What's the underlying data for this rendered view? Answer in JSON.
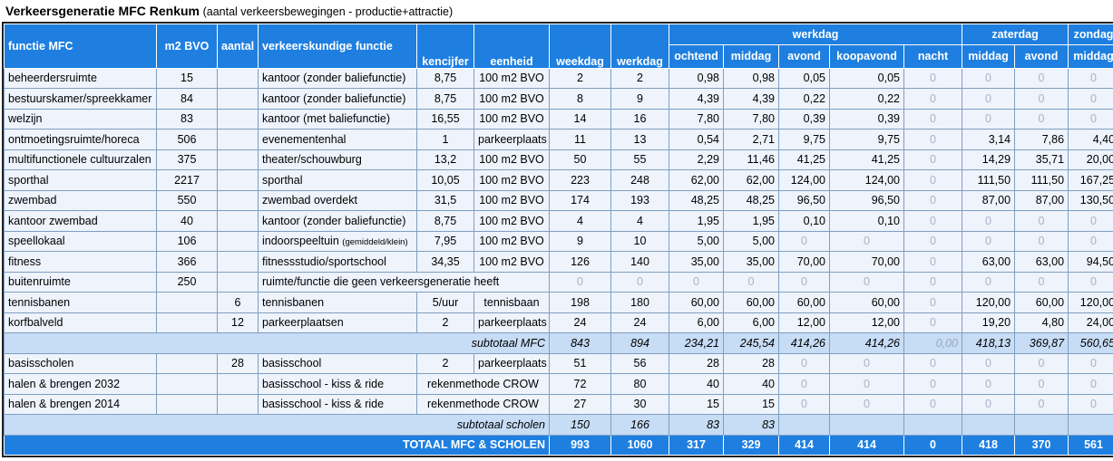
{
  "title": {
    "main": "Verkeersgeneratie MFC Renkum",
    "sub": "(aantal verkeersbewegingen - productie+attractie)"
  },
  "header": {
    "functie": "functie MFC",
    "m2": "m2 BVO",
    "aantal": "aantal",
    "vfunctie": "verkeerskundige functie",
    "kencijfer": "kencijfer",
    "eenheid": "eenheid",
    "weekdag": "weekdag",
    "werkdag": "werkdag",
    "group_werkdag": "werkdag",
    "group_zaterdag": "zaterdag",
    "group_zondag": "zondag",
    "ochtend": "ochtend",
    "middag": "middag",
    "avond": "avond",
    "koopavond": "koopavond",
    "nacht": "nacht",
    "za_middag": "middag",
    "za_avond": "avond",
    "zo_middag": "middag"
  },
  "rows": [
    {
      "f": "beheerdersruimte",
      "m2": "15",
      "aantal": "",
      "vf": "kantoor (zonder baliefunctie)",
      "vf_small": "",
      "kc": "8,75",
      "eh": "100 m2 BVO",
      "wk": "2",
      "wd": "2",
      "o": "0,98",
      "m": "0,98",
      "a": "0,05",
      "k": "0,05",
      "n": "0",
      "zm": "0",
      "za": "0",
      "zo": "0"
    },
    {
      "f": "bestuurskamer/spreekkamer",
      "m2": "84",
      "aantal": "",
      "vf": "kantoor (zonder baliefunctie)",
      "vf_small": "",
      "kc": "8,75",
      "eh": "100 m2 BVO",
      "wk": "8",
      "wd": "9",
      "o": "4,39",
      "m": "4,39",
      "a": "0,22",
      "k": "0,22",
      "n": "0",
      "zm": "0",
      "za": "0",
      "zo": "0"
    },
    {
      "f": "welzijn",
      "m2": "83",
      "aantal": "",
      "vf": "kantoor (met baliefunctie)",
      "vf_small": "",
      "kc": "16,55",
      "eh": "100 m2 BVO",
      "wk": "14",
      "wd": "16",
      "o": "7,80",
      "m": "7,80",
      "a": "0,39",
      "k": "0,39",
      "n": "0",
      "zm": "0",
      "za": "0",
      "zo": "0"
    },
    {
      "f": "ontmoetingsruimte/horeca",
      "m2": "506",
      "aantal": "",
      "vf": "evenementenhal",
      "vf_small": "",
      "kc": "1",
      "eh": "parkeerplaats",
      "wk": "11",
      "wd": "13",
      "o": "0,54",
      "m": "2,71",
      "a": "9,75",
      "k": "9,75",
      "n": "0",
      "zm": "3,14",
      "za": "7,86",
      "zo": "4,40"
    },
    {
      "f": "multifunctionele cultuurzalen",
      "m2": "375",
      "aantal": "",
      "vf": "theater/schouwburg",
      "vf_small": "",
      "kc": "13,2",
      "eh": "100 m2 BVO",
      "wk": "50",
      "wd": "55",
      "o": "2,29",
      "m": "11,46",
      "a": "41,25",
      "k": "41,25",
      "n": "0",
      "zm": "14,29",
      "za": "35,71",
      "zo": "20,00"
    },
    {
      "f": "sporthal",
      "m2": "2217",
      "aantal": "",
      "vf": "sporthal",
      "vf_small": "",
      "kc": "10,05",
      "eh": "100 m2 BVO",
      "wk": "223",
      "wd": "248",
      "o": "62,00",
      "m": "62,00",
      "a": "124,00",
      "k": "124,00",
      "n": "0",
      "zm": "111,50",
      "za": "111,50",
      "zo": "167,25"
    },
    {
      "f": "zwembad",
      "m2": "550",
      "aantal": "",
      "vf": "zwembad overdekt",
      "vf_small": "",
      "kc": "31,5",
      "eh": "100 m2 BVO",
      "wk": "174",
      "wd": "193",
      "o": "48,25",
      "m": "48,25",
      "a": "96,50",
      "k": "96,50",
      "n": "0",
      "zm": "87,00",
      "za": "87,00",
      "zo": "130,50"
    },
    {
      "f": "kantoor zwembad",
      "m2": "40",
      "aantal": "",
      "vf": "kantoor (zonder baliefunctie)",
      "vf_small": "",
      "kc": "8,75",
      "eh": "100 m2 BVO",
      "wk": "4",
      "wd": "4",
      "o": "1,95",
      "m": "1,95",
      "a": "0,10",
      "k": "0,10",
      "n": "0",
      "zm": "0",
      "za": "0",
      "zo": "0"
    },
    {
      "f": "speellokaal",
      "m2": "106",
      "aantal": "",
      "vf": "indoorspeeltuin",
      "vf_small": "(gemiddeld/klein)",
      "kc": "7,95",
      "eh": "100 m2 BVO",
      "wk": "9",
      "wd": "10",
      "o": "5,00",
      "m": "5,00",
      "a": "0",
      "k": "0",
      "n": "0",
      "zm": "0",
      "za": "0",
      "zo": "0"
    },
    {
      "f": "fitness",
      "m2": "366",
      "aantal": "",
      "vf": "fitnessstudio/sportschool",
      "vf_small": "",
      "kc": "34,35",
      "eh": "100 m2 BVO",
      "wk": "126",
      "wd": "140",
      "o": "35,00",
      "m": "35,00",
      "a": "70,00",
      "k": "70,00",
      "n": "0",
      "zm": "63,00",
      "za": "63,00",
      "zo": "94,50"
    },
    {
      "f": "tennisbanen",
      "m2": "",
      "aantal": "6",
      "vf": "tennisbanen",
      "vf_small": "",
      "kc": "5/uur",
      "eh": "tennisbaan",
      "wk": "198",
      "wd": "180",
      "o": "60,00",
      "m": "60,00",
      "a": "60,00",
      "k": "60,00",
      "n": "0",
      "zm": "120,00",
      "za": "60,00",
      "zo": "120,00"
    },
    {
      "f": "korfbalveld",
      "m2": "",
      "aantal": "12",
      "vf": "parkeerplaatsen",
      "vf_small": "",
      "kc": "2",
      "eh": "parkeerplaats",
      "wk": "24",
      "wd": "24",
      "o": "6,00",
      "m": "6,00",
      "a": "12,00",
      "k": "12,00",
      "n": "0",
      "zm": "19,20",
      "za": "4,80",
      "zo": "24,00"
    }
  ],
  "buitenruimte": {
    "f": "buitenruimte",
    "m2": "250",
    "vf": "ruimte/functie die geen verkeersgeneratie heeft",
    "wk": "0",
    "wd": "0",
    "o": "0",
    "m": "0",
    "a": "0",
    "k": "0",
    "n": "0",
    "zm": "0",
    "za": "0",
    "zo": "0"
  },
  "subtotaal_mfc": {
    "label": "subtotaal MFC",
    "wk": "843",
    "wd": "894",
    "o": "234,21",
    "m": "245,54",
    "a": "414,26",
    "k": "414,26",
    "n": "0,00",
    "zm": "418,13",
    "za": "369,87",
    "zo": "560,65"
  },
  "scholen": [
    {
      "f": "basisscholen",
      "m2": "",
      "aantal": "28",
      "vf": "basisschool",
      "kc": "2",
      "eh": "parkeerplaats",
      "wk": "51",
      "wd": "56",
      "o": "28",
      "m": "28",
      "a": "0",
      "k": "0",
      "n": "0",
      "zm": "0",
      "za": "0",
      "zo": "0"
    },
    {
      "f": "halen & brengen 2032",
      "m2": "",
      "aantal": "",
      "vf": "basisschool - kiss & ride",
      "method": "rekenmethode CROW",
      "wk": "72",
      "wd": "80",
      "o": "40",
      "m": "40",
      "a": "0",
      "k": "0",
      "n": "0",
      "zm": "0",
      "za": "0",
      "zo": "0"
    },
    {
      "f": "halen & brengen 2014",
      "m2": "",
      "aantal": "",
      "vf": "basisschool - kiss & ride",
      "method": "rekenmethode CROW",
      "wk": "27",
      "wd": "30",
      "o": "15",
      "m": "15",
      "a": "0",
      "k": "0",
      "n": "0",
      "zm": "0",
      "za": "0",
      "zo": "0"
    }
  ],
  "subtotaal_scholen": {
    "label": "subtotaal scholen",
    "wk": "150",
    "wd": "166",
    "o": "83",
    "m": "83",
    "a": "",
    "k": "",
    "n": "",
    "zm": "",
    "za": "",
    "zo": ""
  },
  "totaal": {
    "label": "TOTAAL MFC & SCHOLEN",
    "wk": "993",
    "wd": "1060",
    "o": "317",
    "m": "329",
    "a": "414",
    "k": "414",
    "n": "0",
    "zm": "418",
    "za": "370",
    "zo": "561"
  },
  "colors": {
    "header_blue": "#1e7fe0",
    "row_bg": "#eef3fc",
    "subtotal_bg": "#c7dcf5",
    "zero_grey": "#a9b4c4"
  }
}
